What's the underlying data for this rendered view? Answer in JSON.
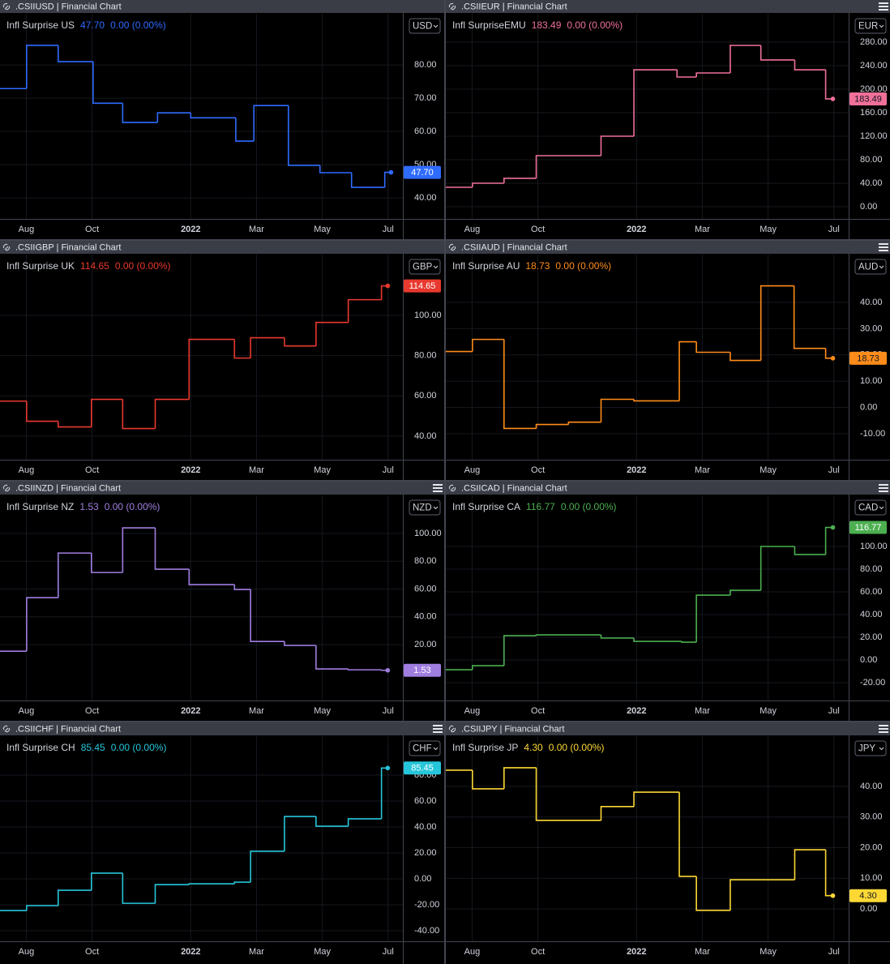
{
  "chart_data": [
    {
      "type": "line",
      "step": true,
      "title": ".CSIIUSD | Financial Chart",
      "currency": "USD",
      "menu_icon": false,
      "change": "0.00 (0.00%)",
      "grid": true,
      "x": [
        7.2,
        8.01,
        8.97,
        10.03,
        10.93,
        11.99,
        13.0,
        14.37,
        14.92,
        15.97,
        16.93,
        17.89,
        18.9,
        19.09
      ],
      "xlim": [
        7.2,
        19.45
      ],
      "xticks": [
        {
          "value": 8,
          "label": "Aug"
        },
        {
          "value": 10,
          "label": "Oct"
        },
        {
          "value": 13,
          "label": "2022"
        },
        {
          "value": 15,
          "label": "Mar"
        },
        {
          "value": 17,
          "label": "May"
        },
        {
          "value": 19,
          "label": "Jul"
        }
      ],
      "ylim": [
        33.7,
        95.4
      ],
      "yticks": [
        {
          "value": 80,
          "label": "80.00"
        },
        {
          "value": 70,
          "label": "70.00"
        },
        {
          "value": 60,
          "label": "60.00"
        },
        {
          "value": 50,
          "label": "50.00"
        },
        {
          "value": 40,
          "label": "40.00"
        }
      ],
      "series": [
        {
          "name": "Infl Surprise US",
          "color": "#2f6bff",
          "values": [
            72.9,
            85.9,
            81,
            68.5,
            62.7,
            65.6,
            64.1,
            57.1,
            67.8,
            49.8,
            47.6,
            43.2,
            47.7,
            47.7
          ],
          "value_labels": [
            null,
            null,
            null,
            null,
            null,
            null,
            null,
            null,
            null,
            null,
            null,
            null,
            null,
            "47.70"
          ]
        }
      ]
    },
    {
      "type": "line",
      "step": true,
      "title": ".CSIIEUR | Financial Chart",
      "currency": "EUR",
      "menu_icon": true,
      "change": "0.00 (0.00%)",
      "grid": true,
      "x": [
        7.2,
        8.01,
        8.97,
        9.95,
        11.92,
        12.92,
        14.23,
        14.82,
        15.85,
        16.78,
        17.81,
        18.75,
        18.97
      ],
      "xlim": [
        7.2,
        19.45
      ],
      "xticks": [
        {
          "value": 8,
          "label": "Aug"
        },
        {
          "value": 10,
          "label": "Oct"
        },
        {
          "value": 13,
          "label": "2022"
        },
        {
          "value": 15,
          "label": "Mar"
        },
        {
          "value": 17,
          "label": "May"
        },
        {
          "value": 19,
          "label": "Jul"
        }
      ],
      "ylim": [
        -20.7,
        328.3
      ],
      "yticks": [
        {
          "value": 280,
          "label": "280.00"
        },
        {
          "value": 240,
          "label": "240.00"
        },
        {
          "value": 200,
          "label": "200.00"
        },
        {
          "value": 160,
          "label": "160.00"
        },
        {
          "value": 120,
          "label": "120.00"
        },
        {
          "value": 80,
          "label": "80.00"
        },
        {
          "value": 40,
          "label": "40.00"
        },
        {
          "value": 0,
          "label": "0.00"
        }
      ],
      "series": [
        {
          "name": "Infl SurpriseEMU",
          "color": "#f0709a",
          "values": [
            33.1,
            40,
            48.3,
            86.9,
            120,
            233.1,
            220.7,
            227.6,
            274.5,
            249.7,
            233.1,
            183.49,
            183.49
          ],
          "value_labels": [
            null,
            null,
            null,
            null,
            null,
            null,
            null,
            null,
            null,
            null,
            null,
            null,
            "183.49"
          ]
        }
      ]
    },
    {
      "type": "line",
      "step": true,
      "title": ".CSIIGBP | Financial Chart",
      "currency": "GBP",
      "menu_icon": false,
      "change": "0.00 (0.00%)",
      "grid": true,
      "x": [
        7.2,
        8.01,
        8.97,
        9.98,
        10.93,
        11.92,
        12.95,
        14.33,
        14.82,
        15.85,
        16.81,
        17.79,
        18.8,
        18.99
      ],
      "xlim": [
        7.2,
        19.45
      ],
      "xticks": [
        {
          "value": 8,
          "label": "Aug"
        },
        {
          "value": 10,
          "label": "Oct"
        },
        {
          "value": 13,
          "label": "2022"
        },
        {
          "value": 15,
          "label": "Mar"
        },
        {
          "value": 17,
          "label": "May"
        },
        {
          "value": 19,
          "label": "Jul"
        }
      ],
      "ylim": [
        28.3,
        130.2
      ],
      "yticks": [
        {
          "value": 100,
          "label": "100.00"
        },
        {
          "value": 80,
          "label": "80.00"
        },
        {
          "value": 60,
          "label": "60.00"
        },
        {
          "value": 40,
          "label": "40.00"
        }
      ],
      "series": [
        {
          "name": "Infl Surprise UK",
          "color": "#e8392f",
          "values": [
            57.4,
            47.4,
            44.6,
            58.3,
            43.8,
            58.3,
            88.1,
            78.8,
            88.9,
            84.8,
            96.5,
            107.8,
            114.65,
            114.65
          ],
          "value_labels": [
            null,
            null,
            null,
            null,
            null,
            null,
            null,
            null,
            null,
            null,
            null,
            null,
            null,
            "114.65"
          ]
        }
      ]
    },
    {
      "type": "line",
      "step": true,
      "title": ".CSIIAUD | Financial Chart",
      "currency": "AUD",
      "menu_icon": true,
      "change": "0.00 (0.00%)",
      "grid": true,
      "x": [
        7.2,
        8.01,
        8.97,
        9.95,
        10.93,
        11.92,
        12.92,
        14.3,
        14.82,
        15.85,
        16.78,
        17.79,
        18.75,
        18.97
      ],
      "xlim": [
        7.2,
        19.45
      ],
      "xticks": [
        {
          "value": 8,
          "label": "Aug"
        },
        {
          "value": 10,
          "label": "Oct"
        },
        {
          "value": 13,
          "label": "2022"
        },
        {
          "value": 15,
          "label": "Mar"
        },
        {
          "value": 17,
          "label": "May"
        },
        {
          "value": 19,
          "label": "Jul"
        }
      ],
      "ylim": [
        -19.9,
        58.2
      ],
      "yticks": [
        {
          "value": 40,
          "label": "40.00"
        },
        {
          "value": 30,
          "label": "30.00"
        },
        {
          "value": 20,
          "label": "20.00"
        },
        {
          "value": 10,
          "label": "10.00"
        },
        {
          "value": 0,
          "label": "0.00"
        },
        {
          "value": -10,
          "label": "-10.00"
        }
      ],
      "series": [
        {
          "name": "Infl Surprise AU",
          "color": "#ff8c1a",
          "values": [
            21.3,
            25.9,
            -8,
            -6.5,
            -5.6,
            3.1,
            2.5,
            25,
            21,
            17.9,
            46.3,
            22.5,
            18.73,
            18.73
          ],
          "value_labels": [
            null,
            null,
            null,
            null,
            null,
            null,
            null,
            null,
            null,
            null,
            null,
            null,
            null,
            "18.73"
          ]
        }
      ]
    },
    {
      "type": "line",
      "step": true,
      "title": ".CSIINZD | Financial Chart",
      "currency": "NZD",
      "menu_icon": true,
      "change": "0.00 (0.00%)",
      "grid": true,
      "x": [
        7.2,
        8.01,
        8.97,
        9.98,
        10.93,
        11.92,
        12.95,
        14.33,
        14.82,
        15.85,
        16.81,
        17.79,
        18.8,
        18.99
      ],
      "xlim": [
        7.2,
        19.45
      ],
      "xticks": [
        {
          "value": 8,
          "label": "Aug"
        },
        {
          "value": 10,
          "label": "Oct"
        },
        {
          "value": 13,
          "label": "2022"
        },
        {
          "value": 15,
          "label": "Mar"
        },
        {
          "value": 17,
          "label": "May"
        },
        {
          "value": 19,
          "label": "Jul"
        }
      ],
      "ylim": [
        -20.2,
        127.4
      ],
      "yticks": [
        {
          "value": 100,
          "label": "100.00"
        },
        {
          "value": 80,
          "label": "80.00"
        },
        {
          "value": 60,
          "label": "60.00"
        },
        {
          "value": 40,
          "label": "40.00"
        },
        {
          "value": 20,
          "label": "20.00"
        }
      ],
      "series": [
        {
          "name": "Infl Surprise NZ",
          "color": "#a07ee0",
          "values": [
            15.3,
            53.8,
            85.9,
            71.9,
            104,
            74.3,
            63.2,
            59.7,
            22.3,
            19.4,
            2.5,
            1.9,
            1.53,
            1.53
          ],
          "value_labels": [
            null,
            null,
            null,
            null,
            null,
            null,
            null,
            null,
            null,
            null,
            null,
            null,
            null,
            "1.53"
          ]
        }
      ]
    },
    {
      "type": "line",
      "step": true,
      "title": ".CSIICAD | Financial Chart",
      "currency": "CAD",
      "menu_icon": true,
      "change": "0.00 (0.00%)",
      "grid": true,
      "x": [
        7.2,
        8.01,
        8.97,
        9.95,
        11.92,
        12.92,
        14.37,
        14.82,
        15.85,
        16.78,
        17.81,
        18.75,
        18.97
      ],
      "xlim": [
        7.2,
        19.45
      ],
      "xticks": [
        {
          "value": 8,
          "label": "Aug"
        },
        {
          "value": 10,
          "label": "Oct"
        },
        {
          "value": 13,
          "label": "2022"
        },
        {
          "value": 15,
          "label": "Mar"
        },
        {
          "value": 17,
          "label": "May"
        },
        {
          "value": 19,
          "label": "Jul"
        }
      ],
      "ylim": [
        -35.7,
        145
      ],
      "yticks": [
        {
          "value": 100,
          "label": "100.00"
        },
        {
          "value": 80,
          "label": "80.00"
        },
        {
          "value": 60,
          "label": "60.00"
        },
        {
          "value": 40,
          "label": "40.00"
        },
        {
          "value": 20,
          "label": "20.00"
        },
        {
          "value": 0,
          "label": "0.00"
        },
        {
          "value": -20,
          "label": "-20.00"
        }
      ],
      "series": [
        {
          "name": "Infl Surprise CA",
          "color": "#4caf50",
          "values": [
            -8.6,
            -5,
            21.4,
            22.1,
            19.3,
            16.4,
            15.7,
            57.1,
            61.4,
            100,
            92.9,
            116.77,
            116.77
          ],
          "value_labels": [
            null,
            null,
            null,
            null,
            null,
            null,
            null,
            null,
            null,
            null,
            null,
            null,
            "116.77"
          ]
        }
      ]
    },
    {
      "type": "line",
      "step": true,
      "title": ".CSIICHF | Financial Chart",
      "currency": "CHF",
      "menu_icon": true,
      "change": "0.00 (0.00%)",
      "grid": true,
      "x": [
        7.2,
        8.01,
        8.97,
        9.98,
        10.93,
        11.92,
        12.95,
        14.33,
        14.82,
        15.85,
        16.81,
        17.79,
        18.8,
        18.99
      ],
      "xlim": [
        7.2,
        19.45
      ],
      "xticks": [
        {
          "value": 8,
          "label": "Aug"
        },
        {
          "value": 10,
          "label": "Oct"
        },
        {
          "value": 13,
          "label": "2022"
        },
        {
          "value": 15,
          "label": "Mar"
        },
        {
          "value": 17,
          "label": "May"
        },
        {
          "value": 19,
          "label": "Jul"
        }
      ],
      "ylim": [
        -48.1,
        110
      ],
      "yticks": [
        {
          "value": 80,
          "label": "80.00"
        },
        {
          "value": 60,
          "label": "60.00"
        },
        {
          "value": 40,
          "label": "40.00"
        },
        {
          "value": 20,
          "label": "20.00"
        },
        {
          "value": 0,
          "label": "0.00"
        },
        {
          "value": -20,
          "label": "-20.00"
        },
        {
          "value": -40,
          "label": "-40.00"
        }
      ],
      "series": [
        {
          "name": "Infl Surprise CH",
          "color": "#26c6da",
          "values": [
            -24.4,
            -20.6,
            -8.8,
            4.4,
            -18.8,
            -4.4,
            -3.8,
            -2.5,
            21.3,
            48.1,
            40.6,
            46.3,
            85.45,
            85.45
          ],
          "value_labels": [
            null,
            null,
            null,
            null,
            null,
            null,
            null,
            null,
            null,
            null,
            null,
            null,
            null,
            "85.45"
          ]
        }
      ]
    },
    {
      "type": "line",
      "step": true,
      "title": ".CSIIJPY | Financial Chart",
      "currency": "JPY",
      "menu_icon": true,
      "change": "0.00 (0.00%)",
      "grid": true,
      "x": [
        7.2,
        8.01,
        8.97,
        9.95,
        11.92,
        12.92,
        14.3,
        14.82,
        15.85,
        17.81,
        18.75,
        18.97
      ],
      "xlim": [
        7.2,
        19.45
      ],
      "xticks": [
        {
          "value": 8,
          "label": "Aug"
        },
        {
          "value": 10,
          "label": "Oct"
        },
        {
          "value": 13,
          "label": "2022"
        },
        {
          "value": 15,
          "label": "Mar"
        },
        {
          "value": 17,
          "label": "May"
        },
        {
          "value": 19,
          "label": "Jul"
        }
      ],
      "ylim": [
        -10.6,
        56.4
      ],
      "yticks": [
        {
          "value": 40,
          "label": "40.00"
        },
        {
          "value": 30,
          "label": "30.00"
        },
        {
          "value": 20,
          "label": "20.00"
        },
        {
          "value": 10,
          "label": "10.00"
        },
        {
          "value": 0,
          "label": "0.00"
        }
      ],
      "series": [
        {
          "name": "Infl Surprise JP",
          "color": "#fdd835",
          "values": [
            45.3,
            39.2,
            46.1,
            28.9,
            33.4,
            38.1,
            10.6,
            -0.5,
            9.5,
            19.3,
            4.3,
            4.3
          ],
          "value_labels": [
            null,
            null,
            null,
            null,
            null,
            null,
            null,
            null,
            null,
            null,
            null,
            "4.30"
          ]
        }
      ]
    }
  ]
}
